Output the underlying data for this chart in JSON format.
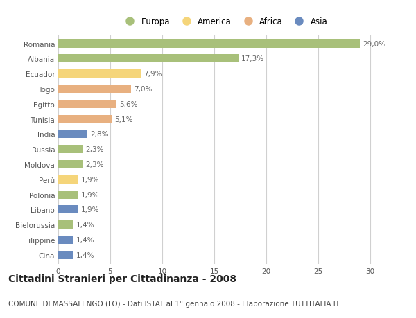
{
  "countries": [
    "Romania",
    "Albania",
    "Ecuador",
    "Togo",
    "Egitto",
    "Tunisia",
    "India",
    "Russia",
    "Moldova",
    "Perù",
    "Polonia",
    "Libano",
    "Bielorussia",
    "Filippine",
    "Cina"
  ],
  "values": [
    29.0,
    17.3,
    7.9,
    7.0,
    5.6,
    5.1,
    2.8,
    2.3,
    2.3,
    1.9,
    1.9,
    1.9,
    1.4,
    1.4,
    1.4
  ],
  "labels": [
    "29,0%",
    "17,3%",
    "7,9%",
    "7,0%",
    "5,6%",
    "5,1%",
    "2,8%",
    "2,3%",
    "2,3%",
    "1,9%",
    "1,9%",
    "1,9%",
    "1,4%",
    "1,4%",
    "1,4%"
  ],
  "continents": [
    "Europa",
    "Europa",
    "America",
    "Africa",
    "Africa",
    "Africa",
    "Asia",
    "Europa",
    "Europa",
    "America",
    "Europa",
    "Asia",
    "Europa",
    "Asia",
    "Asia"
  ],
  "colors": {
    "Europa": "#a8c07a",
    "America": "#f5d57a",
    "Africa": "#e8b080",
    "Asia": "#6a8bbf"
  },
  "legend_order": [
    "Europa",
    "America",
    "Africa",
    "Asia"
  ],
  "legend_colors": [
    "#a8c07a",
    "#f5d57a",
    "#e8b080",
    "#6a8bbf"
  ],
  "xlim": [
    0,
    32
  ],
  "xticks": [
    0,
    5,
    10,
    15,
    20,
    25,
    30
  ],
  "background_color": "#ffffff",
  "grid_color": "#d0d0d0",
  "title": "Cittadini Stranieri per Cittadinanza - 2008",
  "subtitle": "COMUNE DI MASSALENGO (LO) - Dati ISTAT al 1° gennaio 2008 - Elaborazione TUTTITALIA.IT",
  "title_fontsize": 10,
  "subtitle_fontsize": 7.5,
  "label_fontsize": 7.5,
  "tick_fontsize": 7.5,
  "bar_height": 0.55
}
